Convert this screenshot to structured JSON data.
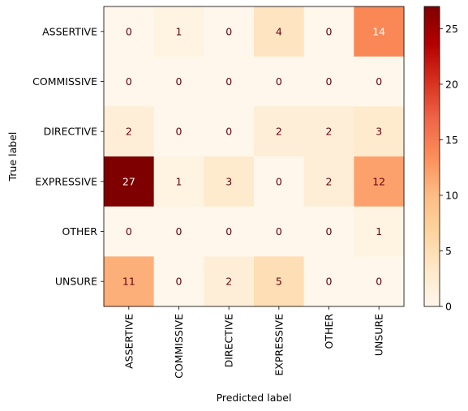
{
  "chart_data": {
    "type": "heatmap",
    "title": "",
    "xlabel": "Predicted label",
    "ylabel": "True label",
    "x_categories": [
      "ASSERTIVE",
      "COMMISSIVE",
      "DIRECTIVE",
      "EXPRESSIVE",
      "OTHER",
      "UNSURE"
    ],
    "y_categories": [
      "ASSERTIVE",
      "COMMISSIVE",
      "DIRECTIVE",
      "EXPRESSIVE",
      "OTHER",
      "UNSURE"
    ],
    "values": [
      [
        0,
        1,
        0,
        4,
        0,
        14
      ],
      [
        0,
        0,
        0,
        0,
        0,
        0
      ],
      [
        2,
        0,
        0,
        2,
        2,
        3
      ],
      [
        27,
        1,
        3,
        0,
        2,
        12
      ],
      [
        0,
        0,
        0,
        0,
        0,
        1
      ],
      [
        11,
        0,
        2,
        5,
        0,
        0
      ]
    ],
    "colormap": "OrRd",
    "vmin": 0,
    "vmax": 27,
    "colorbar_ticks": [
      0,
      5,
      10,
      15,
      20,
      25
    ],
    "colorbar_tick_labels": [
      "0",
      "5",
      "10",
      "15",
      "20",
      "25"
    ],
    "grid": false,
    "cell_text_color_low": "#67000d",
    "cell_text_color_high": "#ffffff"
  }
}
